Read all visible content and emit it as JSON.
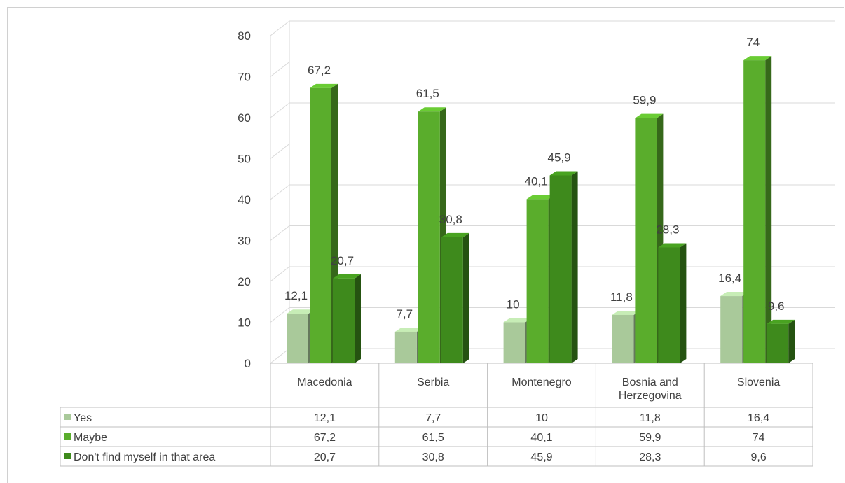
{
  "chart_data": {
    "type": "bar",
    "title": "",
    "xlabel": "",
    "ylabel": "",
    "ylim": [
      0,
      80
    ],
    "yticks": [
      0,
      10,
      20,
      30,
      40,
      50,
      60,
      70,
      80
    ],
    "categories": [
      "Macedonia",
      "Serbia",
      "Montenegro",
      "Bosnia and Herzegovina",
      "Slovenia"
    ],
    "category_lines": [
      [
        "Macedonia"
      ],
      [
        "Serbia"
      ],
      [
        "Montenegro"
      ],
      [
        "Bosnia and",
        "Herzegovina"
      ],
      [
        "Slovenia"
      ]
    ],
    "series": [
      {
        "name": "Yes",
        "values": [
          12.1,
          7.7,
          10,
          11.8,
          16.4
        ],
        "labels": [
          "12,1",
          "7,7",
          "10",
          "11,8",
          "16,4"
        ],
        "color": "#a9c99a"
      },
      {
        "name": "Maybe",
        "values": [
          67.2,
          61.5,
          40.1,
          59.9,
          74
        ],
        "labels": [
          "67,2",
          "61,5",
          "40,1",
          "59,9",
          "74"
        ],
        "color": "#5aad2c"
      },
      {
        "name": "Don't find myself in that area",
        "values": [
          20.7,
          30.8,
          45.9,
          28.3,
          9.6
        ],
        "labels": [
          "20,7",
          "30,8",
          "45,9",
          "28,3",
          "9,6"
        ],
        "color": "#3e8a1c"
      }
    ],
    "grid": true,
    "legend": "data table",
    "three_d": true
  }
}
